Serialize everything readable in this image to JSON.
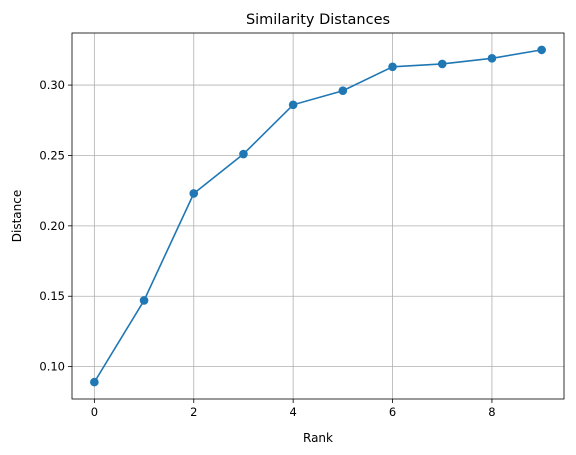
{
  "chart_data": {
    "type": "line",
    "title": "Similarity Distances",
    "xlabel": "Rank",
    "ylabel": "Distance",
    "x": [
      0,
      1,
      2,
      3,
      4,
      5,
      6,
      7,
      8,
      9
    ],
    "series": [
      {
        "values": [
          0.089,
          0.147,
          0.223,
          0.251,
          0.286,
          0.296,
          0.313,
          0.315,
          0.319,
          0.325
        ],
        "color": "#1f77b4",
        "marker": "circle"
      }
    ],
    "xlim": [
      -0.45,
      9.45
    ],
    "ylim": [
      0.077,
      0.337
    ],
    "xticks": [
      0,
      2,
      4,
      6,
      8
    ],
    "xtick_labels": [
      "0",
      "2",
      "4",
      "6",
      "8"
    ],
    "yticks": [
      0.1,
      0.15,
      0.2,
      0.25,
      0.3
    ],
    "ytick_labels": [
      "0.10",
      "0.15",
      "0.20",
      "0.25",
      "0.30"
    ],
    "grid": true
  }
}
